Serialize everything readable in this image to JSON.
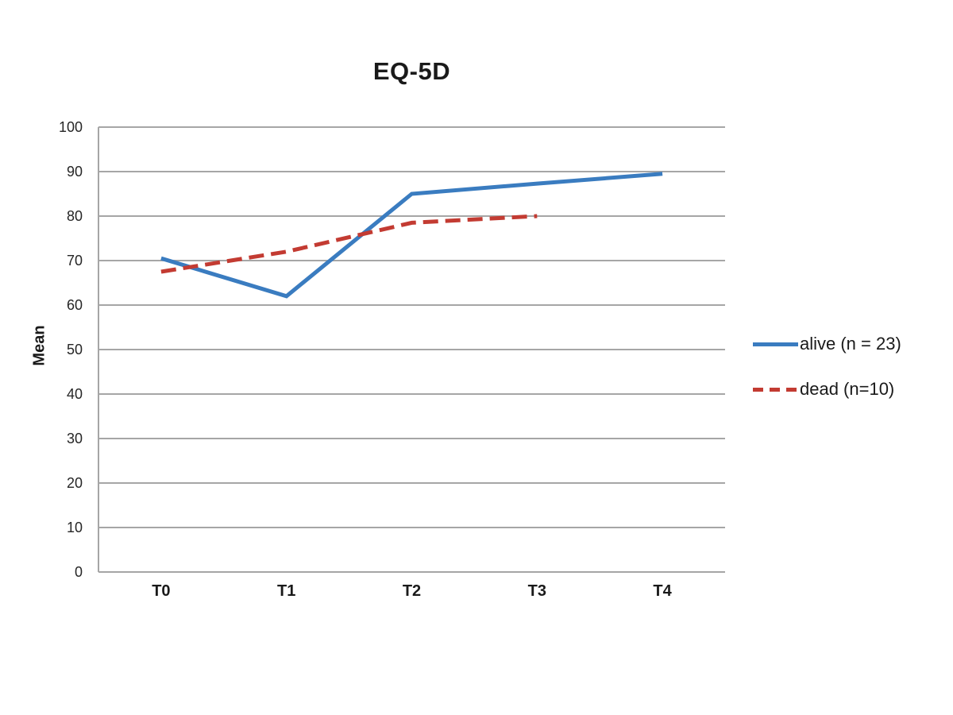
{
  "chart_data": {
    "type": "line",
    "title": "EQ-5D",
    "ylabel": "Mean",
    "xlabel": "",
    "categories": [
      "T0",
      "T1",
      "T2",
      "T3",
      "T4"
    ],
    "y_ticks": [
      100,
      90,
      80,
      70,
      60,
      50,
      40,
      30,
      20,
      10,
      0
    ],
    "ylim": [
      0,
      100
    ],
    "grid": "horizontal",
    "legend_position": "right",
    "series": [
      {
        "name": "alive (n = 23)",
        "color": "#3a7cc0",
        "style": "solid",
        "values": [
          70.5,
          62,
          85,
          87.3,
          89.5
        ]
      },
      {
        "name": "dead (n=10)",
        "color": "#c33b32",
        "style": "dashed",
        "values": [
          67.5,
          72,
          78.5,
          80,
          null
        ]
      }
    ]
  }
}
